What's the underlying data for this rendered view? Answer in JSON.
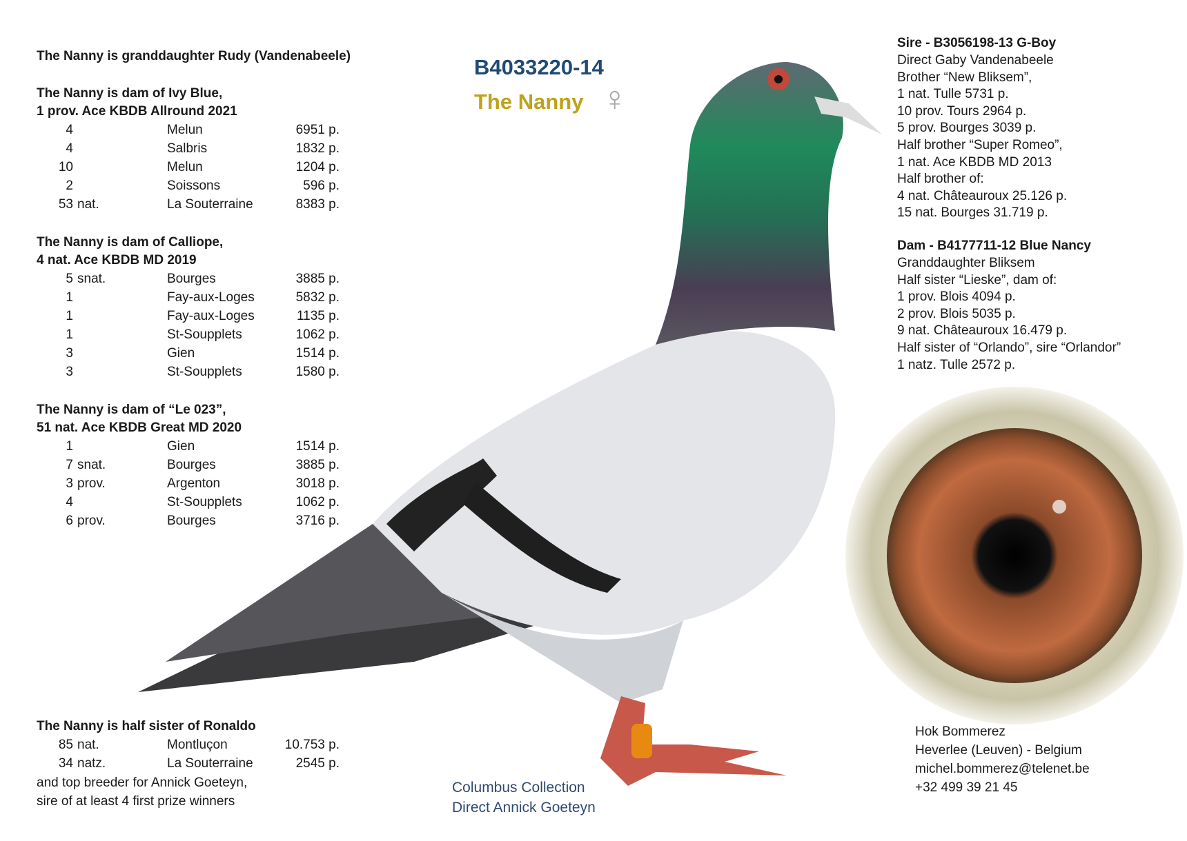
{
  "header": {
    "ring_number": "B4033220-14",
    "name": "The Nanny",
    "sex_icon": "female-symbol",
    "sex_symbol": "♀",
    "colors": {
      "ring_number": "#1f4a73",
      "name": "#bfa21b"
    }
  },
  "left": {
    "intro": "The Nanny is granddaughter Rudy (Vandenabeele)",
    "sections": [
      {
        "lines": [
          "The Nanny is dam of Ivy Blue,",
          "1 prov. Ace KBDB Allround 2021"
        ],
        "rows": [
          [
            "4",
            "",
            "Melun",
            "6951 p."
          ],
          [
            "4",
            "",
            "Salbris",
            "1832 p."
          ],
          [
            "10",
            "",
            "Melun",
            "1204 p."
          ],
          [
            "2",
            "",
            "Soissons",
            "596 p."
          ],
          [
            "53",
            "nat.",
            "La Souterraine",
            "8383 p."
          ]
        ]
      },
      {
        "lines": [
          "The Nanny is dam of Calliope,",
          "4 nat. Ace KBDB MD 2019"
        ],
        "rows": [
          [
            "5",
            "snat.",
            "Bourges",
            "3885 p."
          ],
          [
            "1",
            "",
            "Fay-aux-Loges",
            "5832 p."
          ],
          [
            "1",
            "",
            "Fay-aux-Loges",
            "1135 p."
          ],
          [
            "1",
            "",
            "St-Soupplets",
            "1062 p."
          ],
          [
            "3",
            "",
            "Gien",
            "1514 p."
          ],
          [
            "3",
            "",
            "St-Soupplets",
            "1580 p."
          ]
        ]
      },
      {
        "lines": [
          "The Nanny is dam of “Le 023”,",
          "51 nat. Ace KBDB Great MD 2020"
        ],
        "rows": [
          [
            "1",
            "",
            "Gien",
            "1514 p."
          ],
          [
            "7",
            "snat.",
            "Bourges",
            "3885 p."
          ],
          [
            "3",
            "prov.",
            "Argenton",
            "3018 p."
          ],
          [
            "4",
            "",
            "St-Soupplets",
            "1062 p."
          ],
          [
            "6",
            "prov.",
            "Bourges",
            "3716 p."
          ]
        ]
      },
      {
        "lines": [
          "The Nanny is half sister of Ronaldo"
        ],
        "rows": [
          [
            "85",
            "nat.",
            "Montluçon",
            "10.753 p."
          ],
          [
            "34",
            "natz.",
            "La Souterraine",
            "2545 p."
          ]
        ],
        "footer": [
          "and top breeder for Annick Goeteyn,",
          "sire of at least 4 first prize winners"
        ]
      }
    ]
  },
  "right": {
    "sire_title": "Sire - B3056198-13 G-Boy",
    "sire_lines": [
      "Direct Gaby Vandenabeele",
      "Brother “New Bliksem”,",
      "1 nat. Tulle 5731 p.",
      "10 prov. Tours 2964 p.",
      "5 prov. Bourges 3039 p.",
      "Half brother “Super Romeo”,",
      "1 nat. Ace KBDB MD 2013",
      "Half brother of:",
      "4 nat. Châteauroux 25.126 p.",
      "15 nat. Bourges 31.719 p."
    ],
    "dam_title": "Dam - B4177711-12 Blue Nancy",
    "dam_lines": [
      "Granddaughter Bliksem",
      "Half sister “Lieske”, dam of:",
      "1 prov. Blois 4094 p.",
      "2 prov. Blois 5035 p.",
      "9 nat. Châteauroux 16.479 p.",
      "Half sister of “Orlando”, sire “Orlandor”",
      "1 natz.   Tulle      2572 p."
    ]
  },
  "collection": [
    "Columbus Collection",
    "Direct Annick Goeteyn"
  ],
  "contact": [
    "Hok Bommerez",
    "Heverlee (Leuven) - Belgium",
    "michel.bommerez@telenet.be",
    "+32 499 39 21 45"
  ]
}
